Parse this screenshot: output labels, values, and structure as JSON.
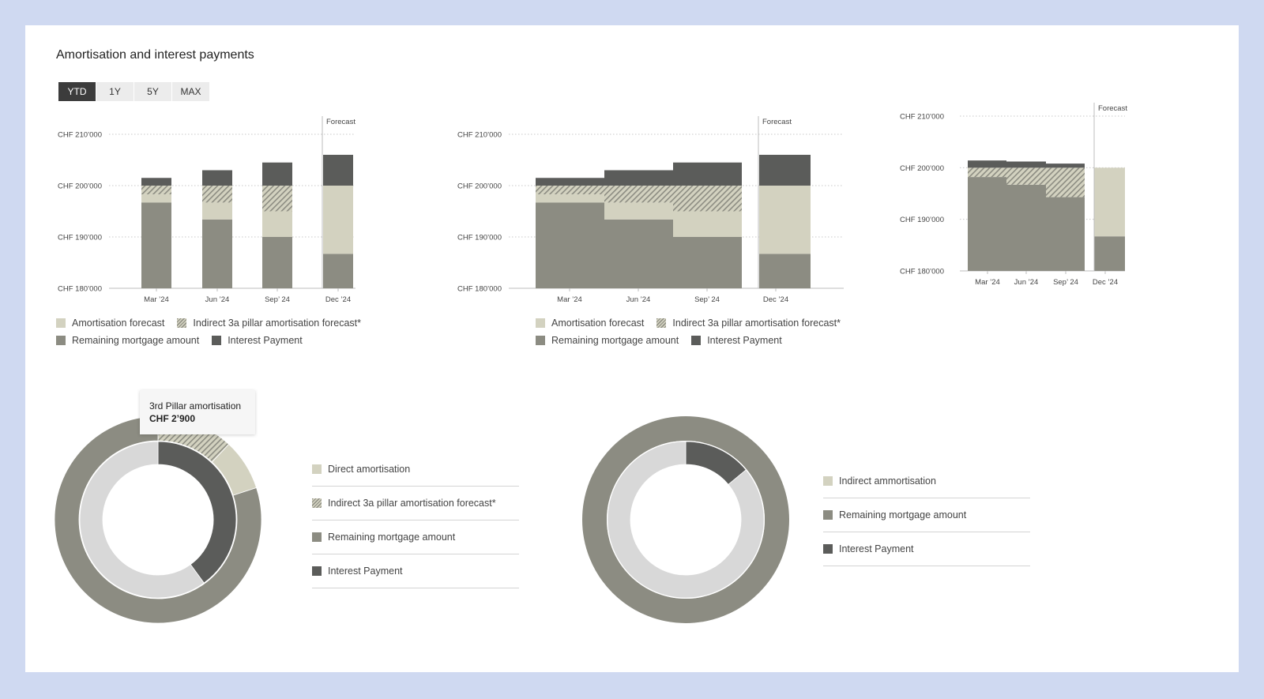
{
  "title": "Amortisation and interest payments",
  "tabs": [
    {
      "label": "YTD",
      "active": true
    },
    {
      "label": "1Y",
      "active": false
    },
    {
      "label": "5Y",
      "active": false
    },
    {
      "label": "MAX",
      "active": false
    }
  ],
  "colors": {
    "amortisation_forecast": "#d3d2c0",
    "remaining_mortgage": "#8c8c82",
    "interest_payment": "#5b5c5a",
    "inner_ring_light": "#d8d8d8",
    "background": "#cfd9f1"
  },
  "legend_bar": {
    "amort": "Amortisation forecast",
    "hatch": "Indirect 3a pillar amortisation forecast*",
    "rem": "Remaining mortgage amount",
    "int": "Interest Payment"
  },
  "forecast_label": "Forecast",
  "chart_data": [
    {
      "type": "bar",
      "variant": "stacked-separated",
      "categories": [
        "Mar ’24",
        "Jun ’24",
        "Sep’ 24",
        "Dec ’24"
      ],
      "y_ticks": [
        "CHF 180’000",
        "CHF 190’000",
        "CHF 200’000",
        "CHF 210’000"
      ],
      "ylim": [
        180000,
        210000
      ],
      "forecast_from_index": 3,
      "series": [
        {
          "name": "Remaining mortgage amount",
          "values": [
            196700,
            193400,
            190000,
            186700
          ]
        },
        {
          "name": "Amortisation forecast",
          "values": [
            1600,
            3300,
            5000,
            13300
          ]
        },
        {
          "name": "Indirect 3a pillar amortisation forecast*",
          "values": [
            1700,
            3300,
            5000,
            0
          ]
        },
        {
          "name": "Interest Payment",
          "values": [
            1500,
            3000,
            4500,
            6000
          ]
        }
      ]
    },
    {
      "type": "bar",
      "variant": "stacked-step",
      "categories": [
        "Mar ’24",
        "Jun ’24",
        "Sep’ 24",
        "Dec ’24"
      ],
      "y_ticks": [
        "CHF 180’000",
        "CHF 190’000",
        "CHF 200’000",
        "CHF 210’000"
      ],
      "ylim": [
        180000,
        210000
      ],
      "forecast_from_index": 3,
      "series": [
        {
          "name": "Remaining mortgage amount",
          "values": [
            196700,
            193400,
            190000,
            186700
          ]
        },
        {
          "name": "Amortisation forecast",
          "values": [
            1600,
            3300,
            5000,
            13300
          ]
        },
        {
          "name": "Indirect 3a pillar amortisation forecast*",
          "values": [
            1700,
            3300,
            5000,
            0
          ]
        },
        {
          "name": "Interest Payment",
          "values": [
            1500,
            3000,
            4500,
            6000
          ]
        }
      ]
    },
    {
      "type": "bar",
      "variant": "stacked-step-compact",
      "categories": [
        "Mar ’24",
        "Jun ’24",
        "Sep’ 24",
        "Dec ’24"
      ],
      "y_ticks": [
        "CHF 180’000",
        "CHF 190’000",
        "CHF 200’000",
        "CHF 210’000"
      ],
      "ylim": [
        180000,
        210000
      ],
      "forecast_from_index": 3,
      "series": [
        {
          "name": "Remaining mortgage amount",
          "values": [
            198200,
            196700,
            194300,
            186700
          ]
        },
        {
          "name": "Amortisation forecast",
          "values": [
            0,
            0,
            0,
            13300
          ]
        },
        {
          "name": "Indirect 3a pillar amortisation forecast*",
          "values": [
            1800,
            3300,
            5700,
            0
          ]
        },
        {
          "name": "Interest Payment",
          "values": [
            1400,
            1200,
            800,
            0
          ]
        }
      ]
    },
    {
      "type": "pie",
      "variant": "double-donut",
      "tooltip": {
        "title": "3rd Pillar amortisation",
        "value": "CHF 2’900"
      },
      "legend": [
        "Direct amortisation",
        "Indirect 3a pillar amortisation forecast*",
        "Remaining mortgage amount",
        "Interest Payment"
      ],
      "outer_ring": [
        {
          "name": "Indirect 3a pillar amortisation forecast*",
          "value": 0.12
        },
        {
          "name": "Direct amortisation",
          "value": 0.08
        },
        {
          "name": "Remaining mortgage amount",
          "value": 0.8
        }
      ],
      "inner_ring": [
        {
          "name": "Interest Payment",
          "value": 0.4
        },
        {
          "name": "Other",
          "value": 0.6
        }
      ]
    },
    {
      "type": "pie",
      "variant": "double-donut",
      "legend": [
        "Indirect ammortisation",
        "Remaining mortgage amount",
        "Interest Payment"
      ],
      "outer_ring": [
        {
          "name": "Remaining mortgage amount",
          "value": 1.0
        }
      ],
      "inner_ring": [
        {
          "name": "Interest Payment",
          "value": 0.14
        },
        {
          "name": "Other",
          "value": 0.86
        }
      ]
    }
  ]
}
